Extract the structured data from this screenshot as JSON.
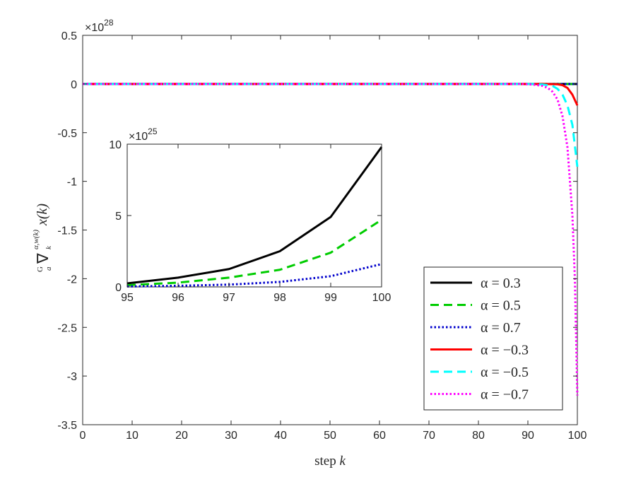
{
  "chart_data": [
    {
      "id": "main",
      "type": "line",
      "xlabel": {
        "text": "step ",
        "var": "k"
      },
      "ylabel": {
        "text": "G∇x(k)",
        "parts": [
          "G",
          "a",
          "∇",
          "k",
          "α,w(k)",
          "x(k)"
        ]
      },
      "xlim": [
        0,
        100
      ],
      "ylim": [
        -3.5,
        0.5
      ],
      "y_exponent": "×10",
      "y_exponent_power": "28",
      "x_ticks": [
        "0",
        "10",
        "20",
        "30",
        "40",
        "50",
        "60",
        "70",
        "80",
        "90",
        "100"
      ],
      "y_ticks": [
        "0.5",
        "0",
        "-0.5",
        "-1",
        "-1.5",
        "-2",
        "-2.5",
        "-3",
        "-3.5"
      ],
      "grid": false,
      "legend_position": "bottom-right",
      "series": [
        {
          "name": "α = 0.3",
          "legend": "α = 0.3",
          "color": "#000000",
          "style": "solid",
          "x": [
            0,
            90,
            95,
            96,
            97,
            98,
            99,
            100
          ],
          "y": [
            0,
            0,
            3e-07,
            1e-06,
            2.5e-06,
            5e-06,
            9e-06,
            9.5e-06
          ]
        },
        {
          "name": "α = 0.5",
          "legend": "α = 0.5",
          "color": "#00cc00",
          "style": "dashed",
          "x": [
            0,
            90,
            100
          ],
          "y": [
            0,
            0,
            4.6e-06
          ]
        },
        {
          "name": "α = 0.7",
          "legend": "α = 0.7",
          "color": "#0000cc",
          "style": "dotted",
          "x": [
            0,
            90,
            100
          ],
          "y": [
            0,
            0,
            1.6e-06
          ]
        },
        {
          "name": "α = −0.3",
          "legend": "α = −0.3",
          "color": "#ff0000",
          "style": "solid",
          "x": [
            0,
            93,
            96,
            97,
            98,
            99,
            100
          ],
          "y": [
            0,
            0,
            -0.003,
            -0.012,
            -0.04,
            -0.11,
            -0.22
          ]
        },
        {
          "name": "α = −0.5",
          "legend": "α = −0.5",
          "color": "#00ffff",
          "style": "dashed",
          "x": [
            0,
            91,
            93,
            95,
            96,
            97,
            98,
            99,
            100
          ],
          "y": [
            0,
            0,
            -0.005,
            -0.02,
            -0.05,
            -0.11,
            -0.22,
            -0.42,
            -0.85
          ]
        },
        {
          "name": "α = −0.7",
          "legend": "α = −0.7",
          "color": "#ff00ff",
          "style": "dotted",
          "x": [
            0,
            89,
            91,
            93,
            94,
            95,
            96,
            97,
            98,
            99,
            99.5,
            100
          ],
          "y": [
            0,
            0,
            -0.005,
            -0.02,
            -0.04,
            -0.08,
            -0.16,
            -0.33,
            -0.65,
            -1.35,
            -2.0,
            -3.2
          ]
        }
      ]
    },
    {
      "id": "inset",
      "type": "line",
      "xlim": [
        95,
        100
      ],
      "ylim": [
        0,
        10
      ],
      "y_exponent": "×10",
      "y_exponent_power": "25",
      "x_ticks": [
        "95",
        "96",
        "97",
        "98",
        "99",
        "100"
      ],
      "y_ticks": [
        "10",
        "5",
        "0"
      ],
      "grid": false,
      "series": [
        {
          "name": "α = 0.3",
          "color": "#000000",
          "style": "solid",
          "x": [
            95,
            96,
            97,
            98,
            99,
            100
          ],
          "y": [
            0.25,
            0.65,
            1.25,
            2.5,
            4.9,
            9.8
          ]
        },
        {
          "name": "α = 0.5",
          "color": "#00cc00",
          "style": "dashed",
          "x": [
            95,
            96,
            97,
            98,
            99,
            100
          ],
          "y": [
            0.12,
            0.3,
            0.65,
            1.2,
            2.4,
            4.7
          ]
        },
        {
          "name": "α = 0.7",
          "color": "#0000cc",
          "style": "dotted",
          "x": [
            95,
            96,
            97,
            98,
            99,
            100
          ],
          "y": [
            0.03,
            0.08,
            0.16,
            0.35,
            0.75,
            1.6
          ]
        }
      ]
    }
  ]
}
